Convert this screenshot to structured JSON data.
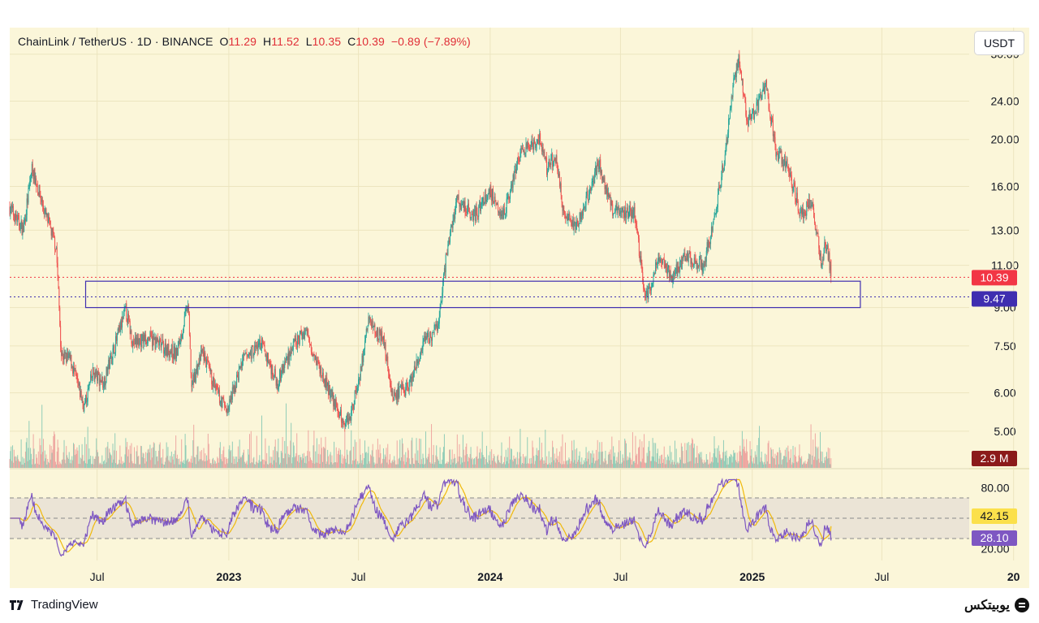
{
  "header": {
    "symbol": "ChainLink / TetherUS · 1D · BINANCE",
    "o_label": "O",
    "o": "11.29",
    "h_label": "H",
    "h": "11.52",
    "l_label": "L",
    "l": "10.35",
    "c_label": "C",
    "c": "10.39",
    "change": "−0.89 (−7.89%)"
  },
  "currency_button": "USDT",
  "footer": {
    "brand": "TradingView",
    "watermark": "یوبیتکس"
  },
  "colors": {
    "background": "#fbf6d9",
    "up": "#26a69a",
    "down": "#ef5350",
    "zone": "#3f2eb0",
    "rsi": "#7e57c2",
    "rsi_ma": "#f0b90b",
    "price_badge": "#f23645",
    "volume_badge": "#8b1a1a"
  },
  "chart_data": {
    "type": "candlestick",
    "price_axis": {
      "scale": "log",
      "ticks": [
        "30.00",
        "24.00",
        "20.00",
        "16.00",
        "13.00",
        "11.00",
        "9.00",
        "7.50",
        "6.00",
        "5.00"
      ],
      "range": [
        4.3,
        33
      ]
    },
    "time_axis": {
      "labels": [
        "Jul",
        "2023",
        "Jul",
        "2024",
        "Jul",
        "2025",
        "Jul",
        "20"
      ],
      "range": [
        "2022-03-01",
        "2025-10-31"
      ]
    },
    "last_price": "10.39",
    "zone_price": "9.47",
    "zone": {
      "low": 9.0,
      "high": 10.2,
      "from": "2022-06-15",
      "to": "2025-06-01"
    },
    "volume_last": "2.9 M",
    "price_path": [
      [
        "2022-03-01",
        14.5
      ],
      [
        "2022-03-20",
        13.0
      ],
      [
        "2022-04-01",
        17.5
      ],
      [
        "2022-04-20",
        14.0
      ],
      [
        "2022-05-05",
        12.0
      ],
      [
        "2022-05-12",
        7.2
      ],
      [
        "2022-05-25",
        7.0
      ],
      [
        "2022-06-13",
        5.6
      ],
      [
        "2022-06-25",
        6.6
      ],
      [
        "2022-07-10",
        6.3
      ],
      [
        "2022-08-10",
        8.9
      ],
      [
        "2022-08-20",
        7.6
      ],
      [
        "2022-09-10",
        7.8
      ],
      [
        "2022-09-30",
        7.5
      ],
      [
        "2022-10-20",
        7.2
      ],
      [
        "2022-11-05",
        9.1
      ],
      [
        "2022-11-10",
        6.2
      ],
      [
        "2022-11-25",
        7.3
      ],
      [
        "2022-12-15",
        6.0
      ],
      [
        "2022-12-30",
        5.5
      ],
      [
        "2023-01-20",
        7.0
      ],
      [
        "2023-02-15",
        7.6
      ],
      [
        "2023-03-10",
        6.3
      ],
      [
        "2023-03-25",
        7.2
      ],
      [
        "2023-04-18",
        8.1
      ],
      [
        "2023-05-10",
        6.6
      ],
      [
        "2023-06-10",
        5.2
      ],
      [
        "2023-06-20",
        5.4
      ],
      [
        "2023-07-05",
        6.8
      ],
      [
        "2023-07-15",
        8.5
      ],
      [
        "2023-08-05",
        7.7
      ],
      [
        "2023-08-18",
        5.9
      ],
      [
        "2023-09-10",
        6.2
      ],
      [
        "2023-10-01",
        7.6
      ],
      [
        "2023-10-20",
        8.2
      ],
      [
        "2023-11-01",
        11.6
      ],
      [
        "2023-11-15",
        15.0
      ],
      [
        "2023-12-10",
        14.0
      ],
      [
        "2024-01-01",
        15.6
      ],
      [
        "2024-01-20",
        14.0
      ],
      [
        "2024-02-10",
        18.5
      ],
      [
        "2024-03-10",
        20.0
      ],
      [
        "2024-03-20",
        17.5
      ],
      [
        "2024-04-01",
        18.5
      ],
      [
        "2024-04-13",
        14.0
      ],
      [
        "2024-05-01",
        13.2
      ],
      [
        "2024-06-01",
        17.9
      ],
      [
        "2024-06-20",
        14.3
      ],
      [
        "2024-07-20",
        14.2
      ],
      [
        "2024-08-05",
        9.3
      ],
      [
        "2024-08-25",
        11.5
      ],
      [
        "2024-09-10",
        10.4
      ],
      [
        "2024-10-01",
        11.5
      ],
      [
        "2024-10-25",
        11.0
      ],
      [
        "2024-11-10",
        14.0
      ],
      [
        "2024-11-25",
        19.0
      ],
      [
        "2024-12-05",
        26.0
      ],
      [
        "2024-12-13",
        29.5
      ],
      [
        "2024-12-25",
        22.0
      ],
      [
        "2025-01-05",
        23.0
      ],
      [
        "2025-01-20",
        26.0
      ],
      [
        "2025-02-03",
        19.0
      ],
      [
        "2025-02-20",
        17.5
      ],
      [
        "2025-03-10",
        13.9
      ],
      [
        "2025-03-25",
        15.0
      ],
      [
        "2025-04-07",
        11.2
      ],
      [
        "2025-04-15",
        12.3
      ],
      [
        "2025-04-21",
        10.39
      ]
    ],
    "rsi": {
      "ticks": [
        "80.00",
        "20.00"
      ],
      "range": [
        10,
        90
      ],
      "band": [
        30,
        70
      ],
      "mid": 50,
      "rsi_value": "28.10",
      "ma_value": "42.15"
    }
  }
}
